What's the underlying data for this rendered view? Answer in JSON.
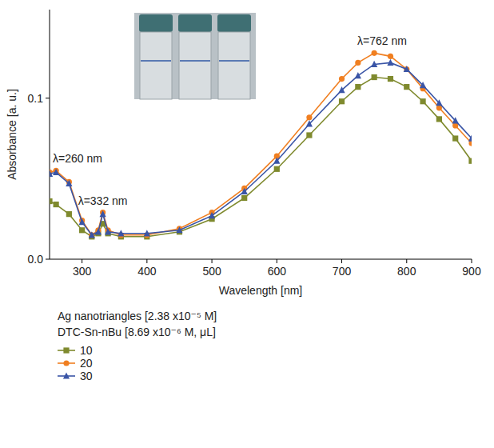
{
  "chart_data": {
    "type": "line",
    "x_label": "Wavelength [nm]",
    "y_label": "Absorbance [a. u.]",
    "x": [
      250,
      260,
      280,
      300,
      315,
      325,
      332,
      340,
      360,
      400,
      450,
      500,
      550,
      600,
      650,
      700,
      725,
      750,
      775,
      800,
      825,
      850,
      875,
      900
    ],
    "series": [
      {
        "name": "10",
        "color": "#7f8a2e",
        "marker": "square",
        "values": [
          0.036,
          0.034,
          0.028,
          0.018,
          0.014,
          0.016,
          0.022,
          0.016,
          0.014,
          0.014,
          0.017,
          0.025,
          0.038,
          0.056,
          0.077,
          0.098,
          0.107,
          0.113,
          0.112,
          0.107,
          0.098,
          0.087,
          0.075,
          0.061
        ]
      },
      {
        "name": "20",
        "color": "#f07f21",
        "marker": "circle",
        "values": [
          0.054,
          0.055,
          0.048,
          0.024,
          0.015,
          0.018,
          0.029,
          0.018,
          0.015,
          0.015,
          0.019,
          0.029,
          0.044,
          0.064,
          0.088,
          0.112,
          0.122,
          0.128,
          0.126,
          0.118,
          0.106,
          0.094,
          0.083,
          0.072
        ]
      },
      {
        "name": "30",
        "color": "#3a55a6",
        "marker": "triangle",
        "values": [
          0.053,
          0.054,
          0.047,
          0.023,
          0.015,
          0.017,
          0.028,
          0.017,
          0.016,
          0.016,
          0.018,
          0.027,
          0.042,
          0.061,
          0.084,
          0.105,
          0.114,
          0.121,
          0.122,
          0.118,
          0.108,
          0.097,
          0.086,
          0.075
        ]
      }
    ],
    "xlim": [
      250,
      900
    ],
    "xticks": [
      300,
      400,
      500,
      600,
      700,
      800,
      900
    ],
    "ylim": [
      0,
      0.155
    ],
    "yticks": [
      {
        "value": 0,
        "label": "0.0"
      },
      {
        "value": 0.1,
        "label": "0.1"
      }
    ],
    "annotations": [
      {
        "text": "λ=260 nm",
        "x": 260
      },
      {
        "text": "λ=332 nm",
        "x": 332
      },
      {
        "text": "λ=762 nm",
        "x": 762
      }
    ],
    "legend_title": [
      "Ag nanotriangles [2.38 x10⁻⁵ M]",
      "DTC-Sn-nBu [8.69 x10⁻⁶ M, μL]"
    ],
    "legend": "bottom",
    "grid": false
  }
}
